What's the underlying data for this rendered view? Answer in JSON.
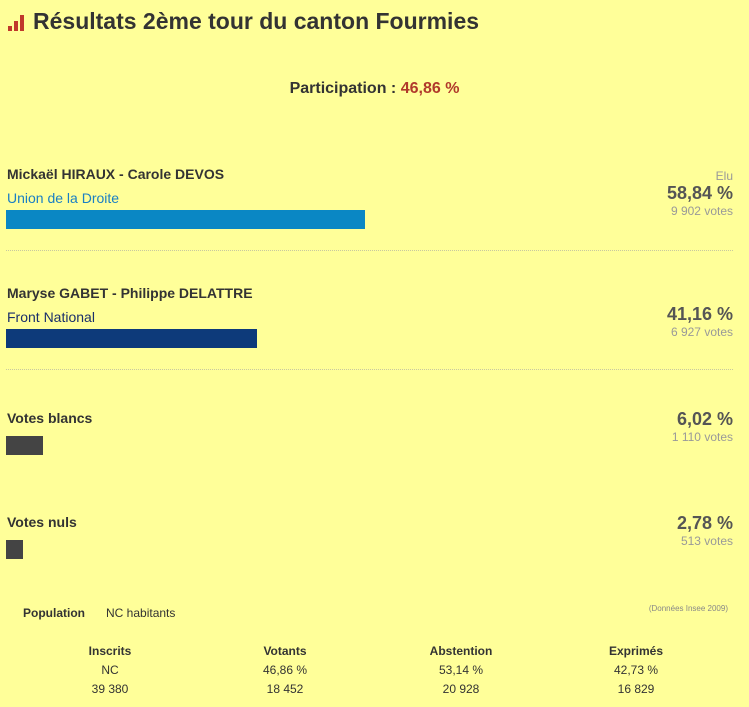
{
  "header": {
    "title": "Résultats 2ème tour du canton Fourmies",
    "icon": "bar-chart-icon"
  },
  "participation": {
    "label": "Participation :",
    "value": "46,86 %"
  },
  "candidates": [
    {
      "name": "Mickaël HIRAUX - Carole DEVOS",
      "party": "Union de la Droite",
      "status": "Elu",
      "percent": "58,84 %",
      "votes": "9 902 votes",
      "share": 0.5884,
      "color": "#0a87c4",
      "party_color": "#1a7fc4"
    },
    {
      "name": "Maryse GABET - Philippe DELATTRE",
      "party": "Front National",
      "status": "",
      "percent": "41,16 %",
      "votes": "6 927 votes",
      "share": 0.4116,
      "color": "#0d3a7a",
      "party_color": "#1a2f6a"
    }
  ],
  "blancs": {
    "label": "Votes blancs",
    "percent": "6,02 %",
    "votes": "1 110 votes",
    "share": 0.0602,
    "color": "#444444"
  },
  "nuls": {
    "label": "Votes nuls",
    "percent": "2,78 %",
    "votes": "513 votes",
    "share": 0.0278,
    "color": "#444444"
  },
  "population": {
    "label": "Population",
    "value": "NC habitants",
    "source": "(Données Insee 2009)"
  },
  "stats": [
    {
      "header": "Inscrits",
      "pct": "NC",
      "count": "39 380"
    },
    {
      "header": "Votants",
      "pct": "46,86 %",
      "count": "18 452"
    },
    {
      "header": "Abstention",
      "pct": "53,14 %",
      "count": "20 928"
    },
    {
      "header": "Exprimés",
      "pct": "42,73 %",
      "count": "16 829"
    }
  ]
}
